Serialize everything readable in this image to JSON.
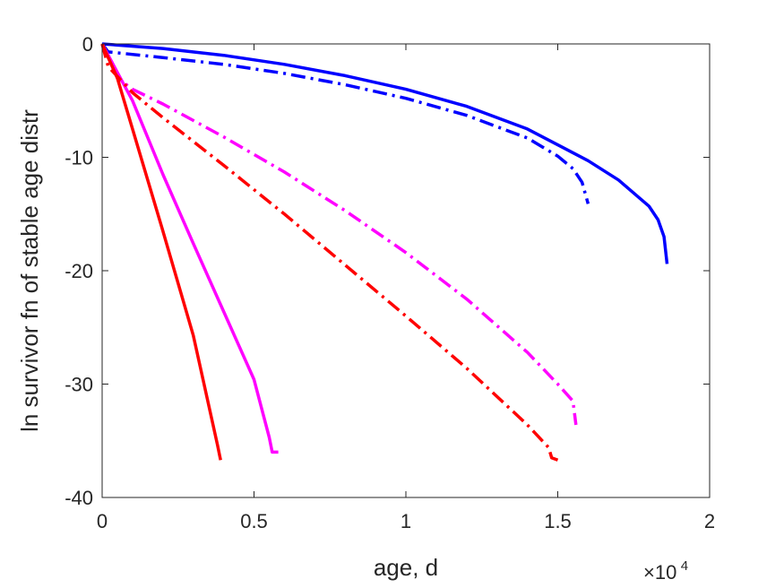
{
  "chart_data": {
    "type": "line",
    "title": "",
    "xlabel": "age, d",
    "ylabel": "ln survivor fn of stable age distr",
    "x_multiplier_label": "×10",
    "x_multiplier_exponent": "4",
    "xlim": [
      0,
      2
    ],
    "ylim": [
      -40,
      0
    ],
    "xticks": [
      "0",
      "0.5",
      "1",
      "1.5",
      "2"
    ],
    "yticks": [
      "0",
      "-10",
      "-20",
      "-30",
      "-40"
    ],
    "xtick_values": [
      0,
      0.5,
      1,
      1.5,
      2
    ],
    "ytick_values": [
      0,
      -10,
      -20,
      -30,
      -40
    ],
    "grid": false,
    "series": [
      {
        "color": "#0000ff",
        "dash": "solid",
        "x": [
          0,
          0.2,
          0.4,
          0.6,
          0.8,
          1.0,
          1.2,
          1.4,
          1.6,
          1.7,
          1.8,
          1.83,
          1.85,
          1.86
        ],
        "y": [
          0,
          -0.4,
          -1.0,
          -1.8,
          -2.8,
          -4.0,
          -5.5,
          -7.5,
          -10.3,
          -12.0,
          -14.3,
          -15.5,
          -17.0,
          -19.4
        ]
      },
      {
        "color": "#0000ff",
        "dash": "dashdot",
        "x": [
          0,
          0.02,
          0.2,
          0.4,
          0.6,
          0.8,
          1.0,
          1.2,
          1.4,
          1.5,
          1.55,
          1.58,
          1.6
        ],
        "y": [
          0,
          -0.7,
          -1.2,
          -1.8,
          -2.6,
          -3.6,
          -4.8,
          -6.3,
          -8.3,
          -9.9,
          -11.0,
          -12.2,
          -14.1
        ]
      },
      {
        "color": "#ff00ff",
        "dash": "solid",
        "x": [
          0,
          0.1,
          0.2,
          0.3,
          0.4,
          0.5,
          0.55,
          0.56,
          0.58
        ],
        "y": [
          0,
          -5.0,
          -11.5,
          -17.6,
          -23.6,
          -29.6,
          -34.7,
          -36.0,
          -36.0
        ]
      },
      {
        "color": "#ff00ff",
        "dash": "dashdot",
        "x": [
          0,
          0.05,
          0.1,
          0.2,
          0.4,
          0.6,
          0.8,
          1.0,
          1.2,
          1.4,
          1.5,
          1.55,
          1.56
        ],
        "y": [
          0,
          -3.0,
          -4.0,
          -5.3,
          -8.2,
          -11.3,
          -14.7,
          -18.4,
          -22.5,
          -27.2,
          -30.0,
          -31.5,
          -33.6
        ]
      },
      {
        "color": "#ff0000",
        "dash": "solid",
        "x": [
          0,
          0.05,
          0.1,
          0.2,
          0.3,
          0.38,
          0.39
        ],
        "y": [
          0,
          -3.0,
          -7.5,
          -16.5,
          -25.7,
          -35.4,
          -36.7
        ]
      },
      {
        "color": "#ff0000",
        "dash": "dashdot",
        "x": [
          0,
          0.02,
          0.1,
          0.2,
          0.4,
          0.6,
          0.8,
          1.0,
          1.2,
          1.4,
          1.47,
          1.48,
          1.5
        ],
        "y": [
          0,
          -2.0,
          -4.3,
          -6.5,
          -10.7,
          -15.0,
          -19.5,
          -24.0,
          -28.6,
          -33.6,
          -35.6,
          -36.5,
          -36.7
        ]
      }
    ]
  }
}
